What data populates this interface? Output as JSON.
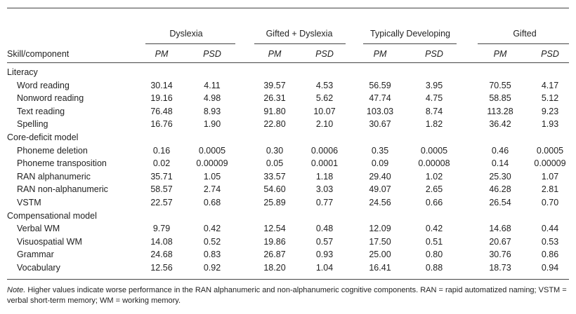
{
  "table": {
    "groups": [
      "Dyslexia",
      "Gifted + Dyslexia",
      "Typically Developing",
      "Gifted"
    ],
    "row_header": "Skill/component",
    "stat_labels": [
      "PM",
      "PSD"
    ],
    "sections": [
      {
        "title": "Literacy",
        "rows": [
          {
            "label": "Word reading",
            "values": [
              "30.14",
              "4.11",
              "39.57",
              "4.53",
              "56.59",
              "3.95",
              "70.55",
              "4.17"
            ]
          },
          {
            "label": "Nonword reading",
            "values": [
              "19.16",
              "4.98",
              "26.31",
              "5.62",
              "47.74",
              "4.75",
              "58.85",
              "5.12"
            ]
          },
          {
            "label": "Text reading",
            "values": [
              "76.48",
              "8.93",
              "91.80",
              "10.07",
              "103.03",
              "8.74",
              "113.28",
              "9.23"
            ]
          },
          {
            "label": "Spelling",
            "values": [
              "16.76",
              "1.90",
              "22.80",
              "2.10",
              "30.67",
              "1.82",
              "36.42",
              "1.93"
            ]
          }
        ]
      },
      {
        "title": "Core-deficit model",
        "rows": [
          {
            "label": "Phoneme deletion",
            "values": [
              "0.16",
              "0.0005",
              "0.30",
              "0.0006",
              "0.35",
              "0.0005",
              "0.46",
              "0.0005"
            ]
          },
          {
            "label": "Phoneme transposition",
            "values": [
              "0.02",
              "0.00009",
              "0.05",
              "0.0001",
              "0.09",
              "0.00008",
              "0.14",
              "0.00009"
            ]
          },
          {
            "label": "RAN alphanumeric",
            "values": [
              "35.71",
              "1.05",
              "33.57",
              "1.18",
              "29.40",
              "1.02",
              "25.30",
              "1.07"
            ]
          },
          {
            "label": "RAN non-alphanumeric",
            "values": [
              "58.57",
              "2.74",
              "54.60",
              "3.03",
              "49.07",
              "2.65",
              "46.28",
              "2.81"
            ]
          },
          {
            "label": "VSTM",
            "values": [
              "22.57",
              "0.68",
              "25.89",
              "0.77",
              "24.56",
              "0.66",
              "26.54",
              "0.70"
            ]
          }
        ]
      },
      {
        "title": "Compensational model",
        "rows": [
          {
            "label": "Verbal WM",
            "values": [
              "9.79",
              "0.42",
              "12.54",
              "0.48",
              "12.09",
              "0.42",
              "14.68",
              "0.44"
            ]
          },
          {
            "label": "Visuospatial WM",
            "values": [
              "14.08",
              "0.52",
              "19.86",
              "0.57",
              "17.50",
              "0.51",
              "20.67",
              "0.53"
            ]
          },
          {
            "label": "Grammar",
            "values": [
              "24.68",
              "0.83",
              "26.87",
              "0.93",
              "25.00",
              "0.80",
              "30.76",
              "0.86"
            ]
          },
          {
            "label": "Vocabulary",
            "values": [
              "12.56",
              "0.92",
              "18.20",
              "1.04",
              "16.41",
              "0.88",
              "18.73",
              "0.94"
            ]
          }
        ]
      }
    ]
  },
  "note": {
    "label": "Note.",
    "text": "Higher values indicate worse performance in the RAN alphanumeric and non-alphanumeric cognitive components. RAN = rapid automatized naming; VSTM = verbal short-term memory; WM = working memory."
  }
}
